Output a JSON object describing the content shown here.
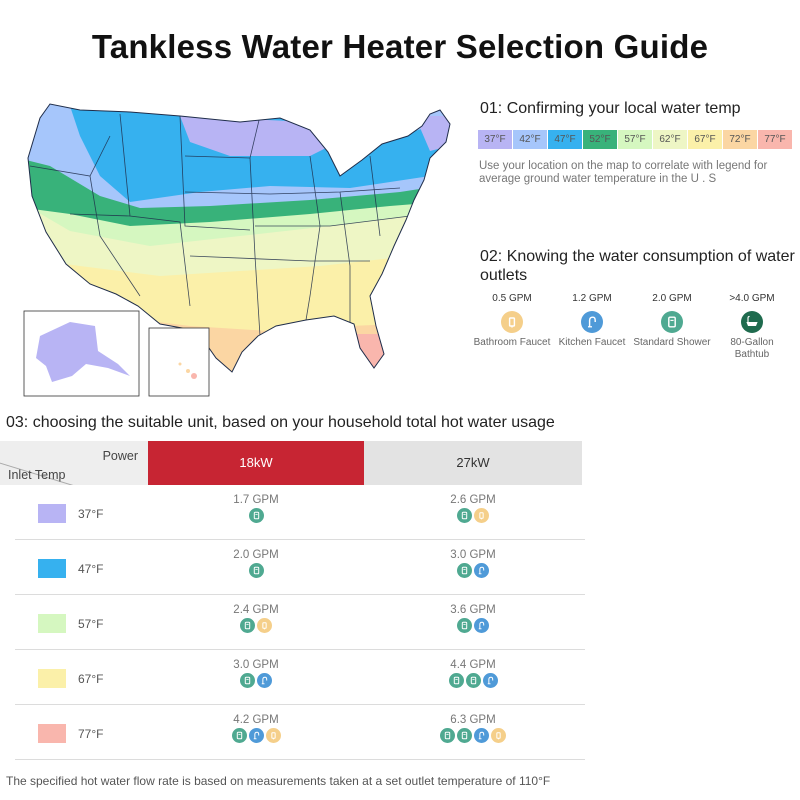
{
  "title": "Tankless Water Heater Selection Guide",
  "section1": {
    "title": "01:  Confirming your local water temp",
    "legend": [
      {
        "label": "37°F",
        "color": "#b8b4f4"
      },
      {
        "label": "42°F",
        "color": "#a6c6fb"
      },
      {
        "label": "47°F",
        "color": "#36b1ef"
      },
      {
        "label": "52°F",
        "color": "#38b27a"
      },
      {
        "label": "57°F",
        "color": "#d5f7c0"
      },
      {
        "label": "62°F",
        "color": "#eef6c5"
      },
      {
        "label": "67°F",
        "color": "#fbf0a9"
      },
      {
        "label": "72°F",
        "color": "#fbd6a3"
      },
      {
        "label": "77°F",
        "color": "#f9b6ad"
      }
    ],
    "description": "Use your location on the map to correlate with legend for average ground water temperature in the U . S"
  },
  "section2": {
    "title": "02:  Knowing the water consumption of water outlets",
    "outlets": [
      {
        "gpm": "0.5 GPM",
        "label": "Bathroom Faucet",
        "icon": "faucet-icon",
        "color": "#f5cf8a"
      },
      {
        "gpm": "1.2 GPM",
        "label": "Kitchen Faucet",
        "icon": "kitchen-faucet-icon",
        "color": "#4f9ad8"
      },
      {
        "gpm": "2.0 GPM",
        "label": "Standard Shower",
        "icon": "shower-icon",
        "color": "#4fa991"
      },
      {
        "gpm": ">4.0 GPM",
        "label": "80-Gallon Bathtub",
        "icon": "bathtub-icon",
        "color": "#1f6b4e"
      }
    ]
  },
  "section3": {
    "title": "03:  choosing the suitable unit, based on your household total hot water usage",
    "header_power": "Power",
    "header_inlet": "Inlet Temp",
    "col_18": "18kW",
    "col_27": "27kW",
    "rows": [
      {
        "temp": "37°F",
        "color": "#b8b4f4",
        "gpm18": "1.7 GPM",
        "icons18": [
          "shower"
        ],
        "gpm27": "2.6 GPM",
        "icons27": [
          "shower",
          "faucet"
        ]
      },
      {
        "temp": "47°F",
        "color": "#36b1ef",
        "gpm18": "2.0 GPM",
        "icons18": [
          "shower"
        ],
        "gpm27": "3.0 GPM",
        "icons27": [
          "shower",
          "kitchen"
        ]
      },
      {
        "temp": "57°F",
        "color": "#d5f7c0",
        "gpm18": "2.4 GPM",
        "icons18": [
          "shower",
          "faucet"
        ],
        "gpm27": "3.6 GPM",
        "icons27": [
          "shower",
          "kitchen"
        ]
      },
      {
        "temp": "67°F",
        "color": "#fbf0a9",
        "gpm18": "3.0 GPM",
        "icons18": [
          "shower",
          "kitchen"
        ],
        "gpm27": "4.4 GPM",
        "icons27": [
          "shower",
          "shower",
          "kitchen"
        ]
      },
      {
        "temp": "77°F",
        "color": "#f9b6ad",
        "gpm18": "4.2 GPM",
        "icons18": [
          "shower",
          "kitchen",
          "faucet"
        ],
        "gpm27": "6.3 GPM",
        "icons27": [
          "shower",
          "shower",
          "kitchen",
          "faucet"
        ]
      }
    ]
  },
  "icon_colors": {
    "shower": "#4fa991",
    "kitchen": "#4f9ad8",
    "faucet": "#f5cf8a"
  },
  "footnote": "The specified hot water flow rate is based on measurements taken at a set outlet temperature of 110°F"
}
